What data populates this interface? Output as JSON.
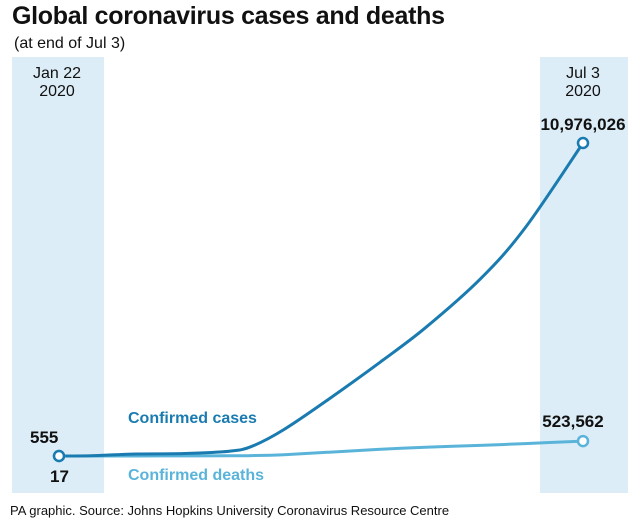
{
  "header": {
    "title": "Global coronavirus cases and deaths",
    "subtitle": "(at end of Jul 3)"
  },
  "footer": {
    "source": "PA graphic. Source: Johns Hopkins University Coronavirus Resource Centre"
  },
  "colors": {
    "cases": "#1a7bb0",
    "deaths": "#5ab4da",
    "band": "#dcedf8",
    "text": "#111111"
  },
  "chart_data": {
    "type": "line",
    "title": "Global coronavirus cases and deaths",
    "subtitle": "(at end of Jul 3)",
    "x": [
      "2020-01-22",
      "2020-02-01",
      "2020-02-15",
      "2020-03-01",
      "2020-03-15",
      "2020-03-22",
      "2020-04-01",
      "2020-04-15",
      "2020-05-01",
      "2020-05-15",
      "2020-06-01",
      "2020-06-15",
      "2020-07-03"
    ],
    "x_start_label": {
      "line1": "Jan 22",
      "line2": "2020"
    },
    "x_end_label": {
      "line1": "Jul 3",
      "line2": "2020"
    },
    "series": [
      {
        "name": "Confirmed cases",
        "values": [
          555,
          12000,
          69000,
          88000,
          170000,
          340000,
          930000,
          2000000,
          3300000,
          4500000,
          6200000,
          8000000,
          10976026
        ],
        "start_label": "555",
        "end_label": "10,976,026"
      },
      {
        "name": "Confirmed deaths",
        "values": [
          17,
          260,
          1500,
          3000,
          6600,
          15000,
          47000,
          135000,
          236000,
          307000,
          373000,
          434000,
          523562
        ],
        "start_label": "17",
        "end_label": "523,562"
      }
    ],
    "grid": false,
    "legend": "inline"
  }
}
